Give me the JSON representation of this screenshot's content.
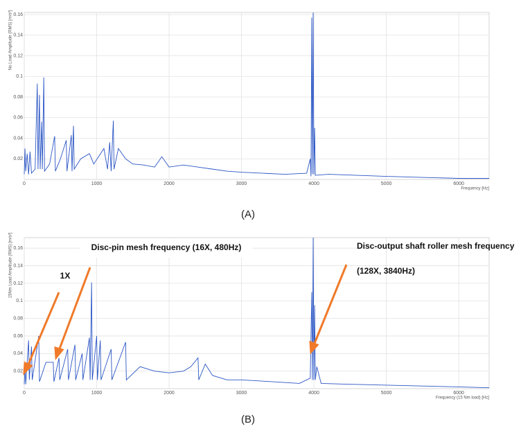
{
  "chart_data": [
    {
      "type": "line",
      "color": "#2a55c5",
      "grid": true,
      "y_label": "No Load Amplitude (RMS) [m/s²]",
      "x_label": "Frequency [Hz]",
      "caption": "(A)",
      "xlim": [
        0,
        6420
      ],
      "xticks": [
        0,
        1000,
        2000,
        3000,
        4000,
        5000,
        6000
      ],
      "ylim": [
        0,
        0.162
      ],
      "yticks": [
        0.02,
        0.04,
        0.06,
        0.08,
        0.1,
        0.12,
        0.14,
        0.16
      ],
      "x": [
        0,
        10,
        20,
        40,
        60,
        80,
        100,
        150,
        180,
        190,
        210,
        220,
        240,
        250,
        270,
        280,
        350,
        420,
        430,
        500,
        580,
        590,
        650,
        660,
        680,
        690,
        780,
        900,
        960,
        1100,
        1150,
        1180,
        1200,
        1230,
        1240,
        1300,
        1400,
        1500,
        1650,
        1800,
        1900,
        2000,
        2200,
        2400,
        2600,
        2800,
        3000,
        3300,
        3600,
        3900,
        3950,
        3960,
        3970,
        3980,
        3990,
        4000,
        4010,
        4020,
        4200,
        4600,
        5000,
        5500,
        6000,
        6420
      ],
      "values": [
        0.005,
        0.03,
        0.008,
        0.025,
        0.005,
        0.027,
        0.006,
        0.01,
        0.093,
        0.01,
        0.082,
        0.01,
        0.056,
        0.01,
        0.099,
        0.008,
        0.015,
        0.042,
        0.008,
        0.02,
        0.038,
        0.008,
        0.043,
        0.008,
        0.052,
        0.01,
        0.02,
        0.025,
        0.015,
        0.03,
        0.01,
        0.036,
        0.008,
        0.057,
        0.01,
        0.03,
        0.02,
        0.015,
        0.014,
        0.012,
        0.022,
        0.012,
        0.014,
        0.012,
        0.01,
        0.008,
        0.007,
        0.006,
        0.005,
        0.006,
        0.02,
        0.003,
        0.157,
        0.005,
        0.162,
        0.005,
        0.05,
        0.004,
        0.005,
        0.004,
        0.003,
        0.002,
        0.001,
        0.001
      ]
    },
    {
      "type": "line",
      "color": "#2a55c5",
      "grid": true,
      "y_label": "15Nm Load Amplitude (RMS) [m/s²]",
      "x_label": "Frequency (15 Nm load) [Hz]",
      "caption": "(B)",
      "annotations": [
        "Disc-pin mesh frequency (16X, 480Hz)",
        "Disc-output shaft roller mesh frequency",
        "(128X, 3840Hz)",
        "1X"
      ],
      "xlim": [
        0,
        6420
      ],
      "xticks": [
        0,
        1000,
        2000,
        3000,
        4000,
        5000,
        6000
      ],
      "ylim": [
        0,
        0.172
      ],
      "yticks": [
        0.02,
        0.04,
        0.06,
        0.08,
        0.1,
        0.12,
        0.14,
        0.16
      ],
      "x": [
        0,
        10,
        20,
        60,
        70,
        100,
        110,
        200,
        210,
        300,
        400,
        410,
        480,
        490,
        600,
        610,
        700,
        710,
        800,
        810,
        900,
        910,
        930,
        940,
        1000,
        1010,
        1050,
        1060,
        1200,
        1210,
        1400,
        1410,
        1600,
        1800,
        2000,
        2200,
        2300,
        2400,
        2410,
        2500,
        2600,
        2800,
        3000,
        3400,
        3800,
        3950,
        3970,
        3980,
        3990,
        4000,
        4010,
        4020,
        4040,
        4100,
        4500,
        5000,
        5500,
        6000,
        6420
      ],
      "values": [
        0.005,
        0.028,
        0.005,
        0.055,
        0.01,
        0.048,
        0.01,
        0.06,
        0.008,
        0.03,
        0.03,
        0.008,
        0.035,
        0.01,
        0.045,
        0.01,
        0.05,
        0.01,
        0.04,
        0.01,
        0.058,
        0.01,
        0.121,
        0.01,
        0.06,
        0.01,
        0.055,
        0.01,
        0.045,
        0.01,
        0.053,
        0.01,
        0.025,
        0.02,
        0.018,
        0.02,
        0.025,
        0.035,
        0.01,
        0.028,
        0.015,
        0.01,
        0.01,
        0.008,
        0.006,
        0.012,
        0.11,
        0.01,
        0.172,
        0.01,
        0.095,
        0.01,
        0.025,
        0.006,
        0.005,
        0.004,
        0.003,
        0.002,
        0.001
      ]
    }
  ]
}
